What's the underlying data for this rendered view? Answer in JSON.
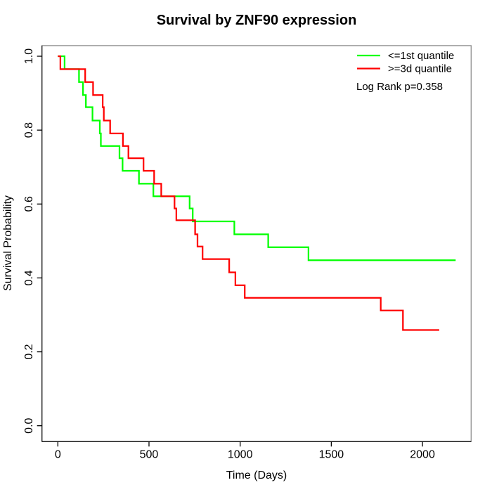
{
  "chart_data": {
    "type": "line",
    "subtype": "kaplan-meier-step",
    "title": "Survival by ZNF90 expression",
    "xlabel": "Time (Days)",
    "ylabel": "Survival Probability",
    "xlim": [
      0,
      2270
    ],
    "ylim": [
      0,
      1
    ],
    "x_ticks": [
      0,
      500,
      1000,
      1500,
      2000
    ],
    "x_tick_labels": [
      "0",
      "500",
      "1000",
      "1500",
      "2000"
    ],
    "y_ticks": [
      0,
      0.2,
      0.4,
      0.6,
      0.8,
      1.0
    ],
    "y_tick_labels": [
      "0.0",
      "0.2",
      "0.4",
      "0.6",
      "0.8",
      "1.0"
    ],
    "grid": false,
    "legend_position": "top-right",
    "annotation": "Log Rank p=0.358",
    "series": [
      {
        "name": "<=1st quantile",
        "color": "#00ff00",
        "start": [
          0,
          1.0
        ],
        "steps": [
          [
            37,
            0.965
          ],
          [
            116,
            0.93
          ],
          [
            138,
            0.895
          ],
          [
            154,
            0.862
          ],
          [
            190,
            0.826
          ],
          [
            230,
            0.791
          ],
          [
            236,
            0.757
          ],
          [
            338,
            0.724
          ],
          [
            355,
            0.69
          ],
          [
            445,
            0.655
          ],
          [
            524,
            0.621
          ],
          [
            723,
            0.588
          ],
          [
            740,
            0.553
          ],
          [
            968,
            0.518
          ],
          [
            1154,
            0.483
          ],
          [
            1375,
            0.448
          ]
        ],
        "end_time": 2182,
        "final_probability": 0.448
      },
      {
        "name": ">=3d quantile",
        "color": "#ff0000",
        "start": [
          0,
          1.0
        ],
        "steps": [
          [
            14,
            0.965
          ],
          [
            150,
            0.93
          ],
          [
            193,
            0.895
          ],
          [
            246,
            0.862
          ],
          [
            252,
            0.826
          ],
          [
            287,
            0.791
          ],
          [
            357,
            0.757
          ],
          [
            387,
            0.724
          ],
          [
            470,
            0.69
          ],
          [
            528,
            0.655
          ],
          [
            567,
            0.621
          ],
          [
            640,
            0.588
          ],
          [
            650,
            0.556
          ],
          [
            753,
            0.518
          ],
          [
            766,
            0.485
          ],
          [
            794,
            0.451
          ],
          [
            940,
            0.415
          ],
          [
            974,
            0.38
          ],
          [
            1025,
            0.346
          ],
          [
            1771,
            0.312
          ],
          [
            1893,
            0.259
          ]
        ],
        "end_time": 2092,
        "final_probability": 0.259
      }
    ]
  }
}
